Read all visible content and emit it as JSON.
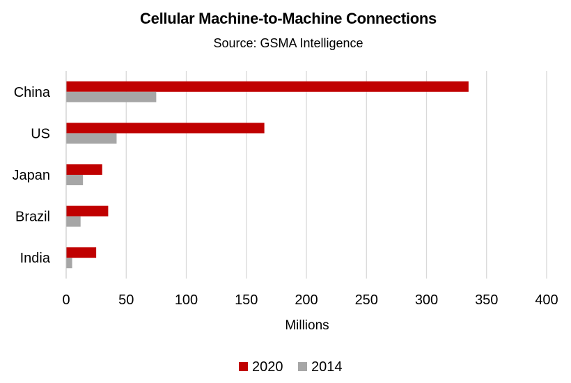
{
  "chart_data": {
    "type": "bar",
    "orientation": "horizontal",
    "title": "Cellular Machine-to-Machine Connections",
    "subtitle": "Source: GSMA Intelligence",
    "categories": [
      "China",
      "US",
      "Japan",
      "Brazil",
      "India"
    ],
    "series": [
      {
        "name": "2020",
        "color": "#c00000",
        "values": [
          335,
          165,
          30,
          35,
          25
        ]
      },
      {
        "name": "2014",
        "color": "#a6a6a6",
        "values": [
          75,
          42,
          14,
          12,
          5
        ]
      }
    ],
    "xlabel": "Millions",
    "ylabel": "",
    "xlim": [
      0,
      400
    ],
    "xticks": [
      "0",
      "50",
      "100",
      "150",
      "200",
      "250",
      "300",
      "350",
      "400"
    ],
    "grid": true,
    "legend_position": "bottom"
  }
}
